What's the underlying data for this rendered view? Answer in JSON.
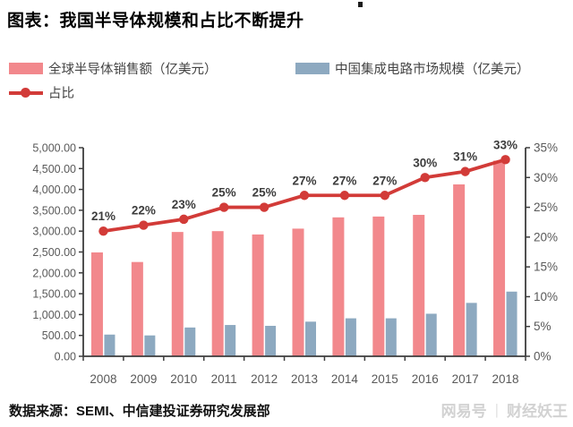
{
  "title": "图表：我国半导体规模和占比不断提升",
  "source": "数据来源：SEMI、中信建投证券研究发展部",
  "watermark": {
    "brand": "网易号",
    "divider": "|",
    "account": "财经妖王"
  },
  "colors": {
    "global_bar": "#F2888C",
    "china_bar": "#8DA9C0",
    "ratio_line": "#D23B38",
    "axis": "#3D3D3D",
    "axis_text": "#595959",
    "label_text": "#3D3D3D"
  },
  "chart_data": {
    "type": "bar",
    "combo": "bar+line",
    "categories": [
      "2008",
      "2009",
      "2010",
      "2011",
      "2012",
      "2013",
      "2014",
      "2015",
      "2016",
      "2017",
      "2018"
    ],
    "series": [
      {
        "name": "全球半导体销售额（亿美元）",
        "type": "bar",
        "axis": "left",
        "color": "#F2888C",
        "values": [
          2490,
          2260,
          2980,
          3000,
          2920,
          3060,
          3330,
          3350,
          3390,
          4120,
          4690
        ]
      },
      {
        "name": "中国集成电路市场规模（亿美元）",
        "type": "bar",
        "axis": "left",
        "color": "#8DA9C0",
        "values": [
          520,
          500,
          690,
          750,
          730,
          830,
          910,
          910,
          1020,
          1280,
          1550
        ]
      },
      {
        "name": "占比",
        "type": "line",
        "axis": "right",
        "color": "#D23B38",
        "values": [
          21,
          22,
          23,
          25,
          25,
          27,
          27,
          27,
          30,
          31,
          33
        ],
        "point_labels": [
          "21%",
          "22%",
          "23%",
          "25%",
          "25%",
          "27%",
          "27%",
          "27%",
          "30%",
          "31%",
          "33%"
        ]
      }
    ],
    "left_axis": {
      "min": 0,
      "max": 5000,
      "tick_labels": [
        "0.00",
        "500.00",
        "1,000.00",
        "1,500.00",
        "2,000.00",
        "2,500.00",
        "3,000.00",
        "3,500.00",
        "4,000.00",
        "4,500.00",
        "5,000.00"
      ]
    },
    "right_axis": {
      "min": 0,
      "max": 35,
      "tick_labels": [
        "0%",
        "5%",
        "10%",
        "15%",
        "20%",
        "25%",
        "30%",
        "35%"
      ]
    },
    "grid": false,
    "legend_position": "top"
  }
}
